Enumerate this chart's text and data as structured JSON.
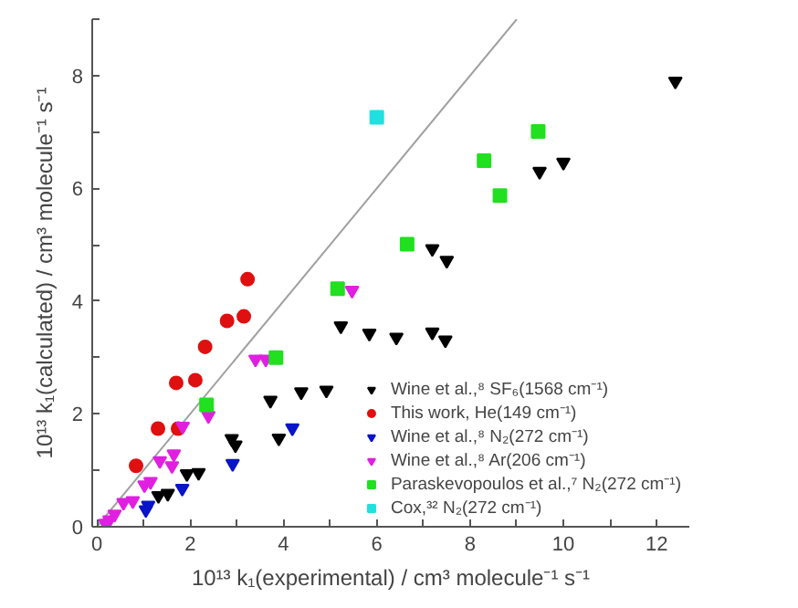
{
  "chart_data": {
    "type": "scatter",
    "xlabel": "10¹³ k₁(experimental) / cm³ molecule⁻¹ s⁻¹",
    "ylabel": "10¹³ k₁(calculated) / cm³ molecule⁻¹ s⁻¹",
    "xlim": [
      -0.1,
      12.7
    ],
    "ylim": [
      0,
      9
    ],
    "xticks": [
      0,
      {
        "value": 1,
        "label": null
      },
      2,
      {
        "value": 3,
        "label": null
      },
      4,
      {
        "value": 5,
        "label": null
      },
      6,
      {
        "value": 7,
        "label": null
      },
      8,
      {
        "value": 9,
        "label": null
      },
      10,
      {
        "value": 11,
        "label": null
      },
      12
    ],
    "yticks": [
      0,
      {
        "value": 1,
        "label": null
      },
      2,
      {
        "value": 3,
        "label": null
      },
      4,
      {
        "value": 5,
        "label": null
      },
      6,
      {
        "value": 7,
        "label": null
      },
      8,
      {
        "value": 9,
        "label": null
      }
    ],
    "grid": false,
    "legend": "bottom right",
    "series": [
      {
        "type": "line",
        "color": "#a0a0a0",
        "x": [
          0,
          9
        ],
        "values": [
          0,
          9
        ],
        "marker": "none"
      },
      {
        "name": "Wine et al.,⁸ SF₆(1568 cm⁻¹)",
        "color": "#000000",
        "marker": "triangle",
        "x": [
          1.32,
          1.52,
          1.93,
          2.18,
          2.89,
          2.97,
          3.72,
          3.9,
          4.38,
          4.92,
          5.23,
          5.84,
          6.42,
          7.19,
          7.47,
          7.19,
          7.5,
          9.49,
          10.0,
          12.4
        ],
        "values": [
          0.55,
          0.59,
          0.94,
          0.96,
          1.56,
          1.45,
          2.24,
          1.57,
          2.39,
          2.42,
          3.56,
          3.43,
          3.36,
          3.45,
          3.31,
          4.93,
          4.72,
          6.3,
          6.46,
          7.9
        ]
      },
      {
        "name": "This work, He(149 cm⁻¹)",
        "color": "#e01010",
        "marker": "circle",
        "x": [
          0.84,
          1.31,
          1.74,
          1.7,
          2.11,
          2.32,
          2.79,
          3.15,
          3.23
        ],
        "values": [
          1.08,
          1.74,
          1.74,
          2.55,
          2.6,
          3.19,
          3.65,
          3.73,
          4.39
        ]
      },
      {
        "name": "Wine et al.,⁸ N₂(272 cm⁻¹)",
        "color": "#0a14c8",
        "marker": "triangle",
        "x": [
          1.05,
          1.1,
          1.83,
          2.91,
          4.19
        ],
        "values": [
          0.3,
          0.38,
          0.68,
          1.12,
          1.75
        ]
      },
      {
        "name": "Wine et al.,⁸ Ar(206 cm⁻¹)",
        "color": "#e020e0",
        "marker": "triangle",
        "x": [
          0.18,
          0.27,
          0.38,
          0.57,
          0.77,
          1.02,
          1.15,
          1.35,
          1.61,
          1.65,
          1.84,
          2.39,
          3.4,
          3.62,
          5.47
        ],
        "values": [
          0.06,
          0.12,
          0.22,
          0.43,
          0.46,
          0.74,
          0.8,
          1.17,
          1.08,
          1.29,
          1.78,
          1.97,
          2.97,
          2.97,
          4.19
        ]
      },
      {
        "name": "Paraskevopoulos et al.,⁷ N₂(272 cm⁻¹)",
        "color": "#20e020",
        "marker": "square",
        "x": [
          2.35,
          3.84,
          5.16,
          6.65,
          8.3,
          8.64,
          9.46
        ],
        "values": [
          2.16,
          3.0,
          4.22,
          5.01,
          6.49,
          5.87,
          7.01
        ]
      },
      {
        "name": "Cox,³² N₂(272 cm⁻¹)",
        "color": "#20e0e0",
        "marker": "square",
        "x": [
          6.0
        ],
        "values": [
          7.26
        ]
      }
    ]
  }
}
